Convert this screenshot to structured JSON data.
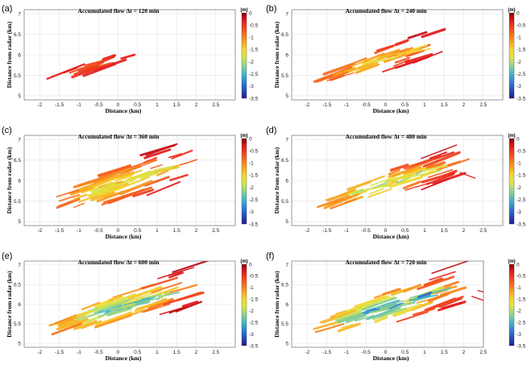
{
  "chart_data": [
    {
      "type": "heatmap",
      "panel": "(a)",
      "title": "Accumulated flow Δt = 120 min",
      "xlabel": "Distance (km)",
      "ylabel": "Distance from radar (km)",
      "xlim": [
        -2.4,
        3.0
      ],
      "ylim": [
        4.9,
        7.1
      ],
      "xticks": [
        -2,
        -1.5,
        -1,
        -0.5,
        0,
        0.5,
        1,
        1.5,
        2,
        2.5
      ],
      "yticks": [
        5,
        5.5,
        6,
        6.5,
        7
      ],
      "colorbar": {
        "unit": "(m)",
        "range": [
          -3.5,
          0
        ],
        "ticks": [
          0,
          -0.5,
          -1,
          -1.5,
          -2,
          -2.5,
          -3,
          -3.5
        ]
      },
      "max_depth": 0.6,
      "reach": 0.55,
      "width": 0.55,
      "streaks": 14,
      "extras": []
    },
    {
      "type": "heatmap",
      "panel": "(b)",
      "title": "Accumulated flow Δt = 240 min",
      "xlabel": "Distance (km)",
      "ylabel": "Distance from radar (km)",
      "xlim": [
        -2.4,
        3.0
      ],
      "ylim": [
        4.9,
        7.1
      ],
      "xticks": [
        -2,
        -1.5,
        -1,
        -0.5,
        0,
        0.5,
        1,
        1.5,
        2,
        2.5
      ],
      "yticks": [
        5,
        5.5,
        6,
        6.5,
        7
      ],
      "colorbar": {
        "unit": "(m)",
        "range": [
          -3.5,
          0
        ],
        "ticks": [
          0,
          -0.5,
          -1,
          -1.5,
          -2,
          -2.5,
          -3,
          -3.5
        ]
      },
      "max_depth": 1.6,
      "reach": 0.85,
      "width": 1.0,
      "streaks": 34,
      "extras": []
    },
    {
      "type": "heatmap",
      "panel": "(c)",
      "title": "Accumulated flow Δt = 360 min",
      "xlabel": "Distance (km)",
      "ylabel": "Distance from radar (km)",
      "xlim": [
        -2.4,
        3.0
      ],
      "ylim": [
        4.9,
        7.1
      ],
      "xticks": [
        -2,
        -1.5,
        -1,
        -0.5,
        0,
        0.5,
        1,
        1.5,
        2,
        2.5
      ],
      "yticks": [
        5,
        5.5,
        6,
        6.5,
        7
      ],
      "colorbar": {
        "unit": "(m)",
        "range": [
          -3.5,
          0
        ],
        "ticks": [
          0,
          -0.5,
          -1,
          -1.5,
          -2,
          -2.5,
          -3,
          -3.5
        ]
      },
      "max_depth": 1.8,
      "reach": 1.0,
      "width": 1.7,
      "streaks": 60,
      "extras": []
    },
    {
      "type": "heatmap",
      "panel": "(d)",
      "title": "Accumulated flow Δt = 480 min",
      "xlabel": "Distance (km)",
      "ylabel": "Distance from radar (km)",
      "xlim": [
        -2.4,
        3.0
      ],
      "ylim": [
        4.9,
        7.1
      ],
      "xticks": [
        -2,
        -1.5,
        -1,
        -0.5,
        0,
        0.5,
        1,
        1.5,
        2,
        2.5
      ],
      "yticks": [
        5,
        5.5,
        6,
        6.5,
        7
      ],
      "colorbar": {
        "unit": "(m)",
        "range": [
          -3.5,
          0
        ],
        "ticks": [
          0,
          -0.5,
          -1,
          -1.5,
          -2,
          -2.5,
          -3,
          -3.5
        ]
      },
      "max_depth": 2.2,
      "reach": 1.0,
      "width": 1.2,
      "streaks": 48,
      "extras": [
        {
          "x1": 1.9,
          "y1": 6.2,
          "x2": 2.3,
          "y2": 6.05
        }
      ]
    },
    {
      "type": "heatmap",
      "panel": "(e)",
      "title": "Accumulated flow Δt = 600 min",
      "xlabel": "Distance (km)",
      "ylabel": "Distance from radar (km)",
      "xlim": [
        -2.4,
        3.0
      ],
      "ylim": [
        4.9,
        7.1
      ],
      "xticks": [
        -2,
        -1.5,
        -1,
        -0.5,
        0,
        0.5,
        1,
        1.5,
        2,
        2.5
      ],
      "yticks": [
        5,
        5.5,
        6,
        6.5,
        7
      ],
      "colorbar": {
        "unit": "(m)",
        "range": [
          -3.5,
          0
        ],
        "ticks": [
          0,
          -0.5,
          -1,
          -1.5,
          -2,
          -2.5,
          -3,
          -3.5
        ]
      },
      "max_depth": 2.6,
      "reach": 1.05,
      "width": 1.5,
      "streaks": 62,
      "extras": []
    },
    {
      "type": "heatmap",
      "panel": "(f)",
      "title": "Accumulated flow Δt = 720 min",
      "xlabel": "Distance (km)",
      "ylabel": "Distance from radar (km)",
      "xlim": [
        -2.4,
        3.0
      ],
      "ylim": [
        4.9,
        7.1
      ],
      "xticks": [
        -2,
        -1.5,
        -1,
        -0.5,
        0,
        0.5,
        1,
        1.5,
        2,
        2.5
      ],
      "yticks": [
        5,
        5.5,
        6,
        6.5,
        7
      ],
      "colorbar": {
        "unit": "(m)",
        "range": [
          -3.5,
          0
        ],
        "ticks": [
          0,
          -0.5,
          -1,
          -1.5,
          -2,
          -2.5,
          -3,
          -3.5
        ]
      },
      "max_depth": 3.0,
      "reach": 1.05,
      "width": 1.6,
      "streaks": 66,
      "extras": [
        {
          "x1": 2.2,
          "y1": 6.2,
          "x2": 2.5,
          "y2": 6.1
        },
        {
          "x1": 2.35,
          "y1": 6.35,
          "x2": 2.55,
          "y2": 6.3
        }
      ]
    }
  ]
}
